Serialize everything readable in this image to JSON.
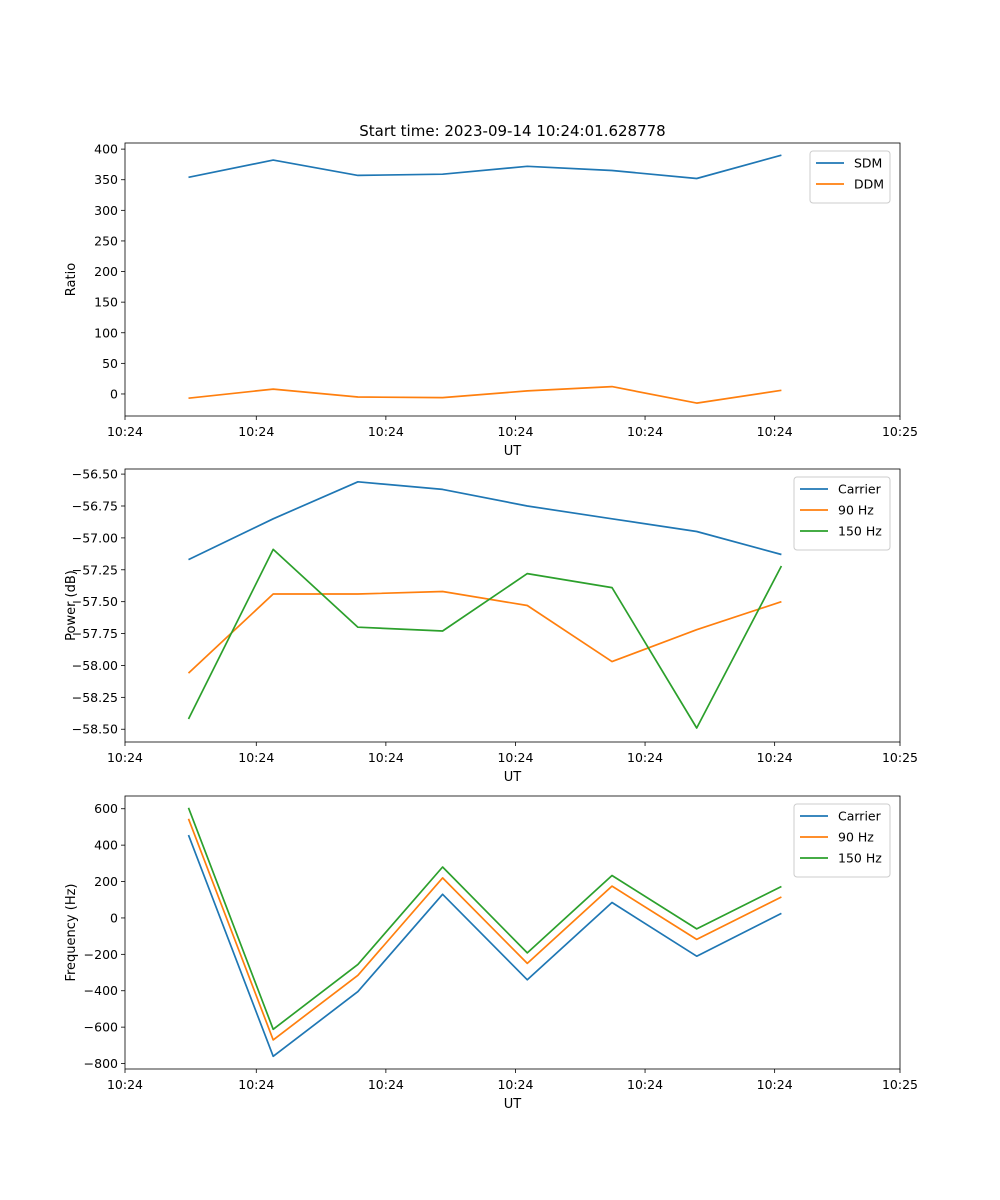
{
  "chart_data": [
    {
      "type": "line",
      "title": "Start time: 2023-09-14 10:24:01.628778",
      "xlabel": "UT",
      "ylabel": "Ratio",
      "x": [
        0,
        1,
        2,
        3,
        4,
        5,
        6,
        7
      ],
      "xlim": [
        -0.75,
        8.4
      ],
      "xticks": [
        -0.75,
        0.8,
        2.33,
        3.86,
        5.39,
        6.92,
        8.4
      ],
      "xtick_labels": [
        "10:24",
        "10:24",
        "10:24",
        "10:24",
        "10:24",
        "10:24",
        "10:25"
      ],
      "ylim": [
        -36,
        410
      ],
      "yticks": [
        0,
        50,
        100,
        150,
        200,
        250,
        300,
        350,
        400
      ],
      "ytick_labels": [
        "0",
        "50",
        "100",
        "150",
        "200",
        "250",
        "300",
        "350",
        "400"
      ],
      "legend": "top-right",
      "series": [
        {
          "name": "SDM",
          "color": "#1f77b4",
          "values": [
            354,
            382,
            357,
            359,
            372,
            365,
            352,
            390
          ]
        },
        {
          "name": "DDM",
          "color": "#ff7f0e",
          "values": [
            -7,
            8,
            -5,
            -6,
            5,
            12,
            -15,
            6
          ]
        }
      ]
    },
    {
      "type": "line",
      "title": "",
      "xlabel": "UT",
      "ylabel": "Power (dB)",
      "x": [
        0,
        1,
        2,
        3,
        4,
        5,
        6,
        7
      ],
      "xlim": [
        -0.75,
        8.4
      ],
      "xticks": [
        -0.75,
        0.8,
        2.33,
        3.86,
        5.39,
        6.92,
        8.4
      ],
      "xtick_labels": [
        "10:24",
        "10:24",
        "10:24",
        "10:24",
        "10:24",
        "10:24",
        "10:25"
      ],
      "ylim": [
        -58.6,
        -56.46
      ],
      "yticks": [
        -58.5,
        -58.25,
        -58.0,
        -57.75,
        -57.5,
        -57.25,
        -57.0,
        -56.75,
        -56.5
      ],
      "ytick_labels": [
        "−58.50",
        "−58.25",
        "−58.00",
        "−57.75",
        "−57.50",
        "−57.25",
        "−57.00",
        "−56.75",
        "−56.50"
      ],
      "legend": "top-right",
      "series": [
        {
          "name": "Carrier",
          "color": "#1f77b4",
          "values": [
            -57.17,
            -56.85,
            -56.56,
            -56.62,
            -56.75,
            -56.85,
            -56.95,
            -57.13
          ]
        },
        {
          "name": "90 Hz",
          "color": "#ff7f0e",
          "values": [
            -58.06,
            -57.44,
            -57.44,
            -57.42,
            -57.53,
            -57.97,
            -57.72,
            -57.5
          ]
        },
        {
          "name": "150 Hz",
          "color": "#2ca02c",
          "values": [
            -58.42,
            -57.09,
            -57.7,
            -57.73,
            -57.28,
            -57.39,
            -58.49,
            -57.22
          ]
        }
      ]
    },
    {
      "type": "line",
      "title": "",
      "xlabel": "UT",
      "ylabel": "Frequency (Hz)",
      "x": [
        0,
        1,
        2,
        3,
        4,
        5,
        6,
        7
      ],
      "xlim": [
        -0.75,
        8.4
      ],
      "xticks": [
        -0.75,
        0.8,
        2.33,
        3.86,
        5.39,
        6.92,
        8.4
      ],
      "xtick_labels": [
        "10:24",
        "10:24",
        "10:24",
        "10:24",
        "10:24",
        "10:24",
        "10:25"
      ],
      "ylim": [
        -830,
        670
      ],
      "yticks": [
        -800,
        -600,
        -400,
        -200,
        0,
        200,
        400,
        600
      ],
      "ytick_labels": [
        "−800",
        "−600",
        "−400",
        "−200",
        "0",
        "200",
        "400",
        "600"
      ],
      "legend": "top-right",
      "series": [
        {
          "name": "Carrier",
          "color": "#1f77b4",
          "values": [
            455,
            -760,
            -405,
            130,
            -340,
            85,
            -210,
            25
          ]
        },
        {
          "name": "90 Hz",
          "color": "#ff7f0e",
          "values": [
            545,
            -670,
            -315,
            220,
            -250,
            175,
            -118,
            115
          ]
        },
        {
          "name": "150 Hz",
          "color": "#2ca02c",
          "values": [
            605,
            -612,
            -255,
            280,
            -192,
            233,
            -60,
            173
          ]
        }
      ]
    }
  ]
}
